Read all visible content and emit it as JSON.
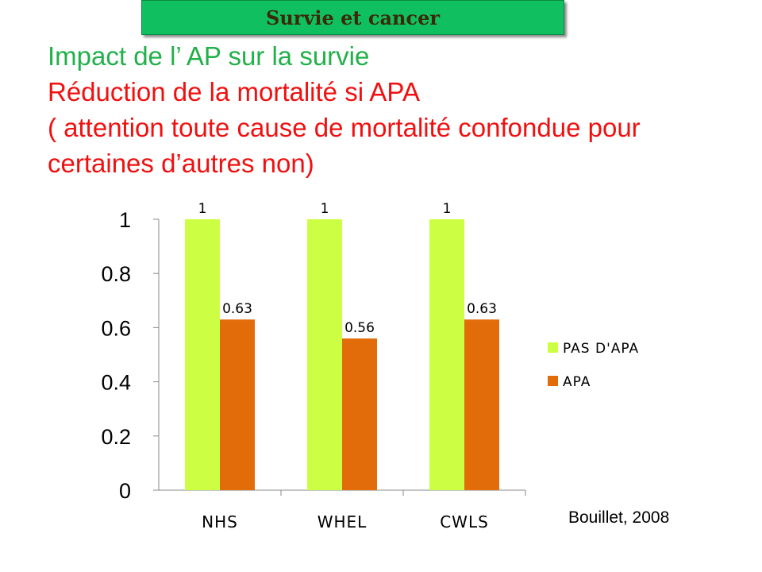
{
  "header": {
    "label": "Survie et cancer",
    "bg_color": "#10c060"
  },
  "title": {
    "line1": "Impact de l’ AP sur la survie",
    "line2": "Réduction de la mortalité si APA",
    "line3": "( attention toute cause de mortalité confondue pour",
    "line4": "certaines d’autres non)"
  },
  "chart_data": {
    "type": "bar",
    "categories": [
      "NHS",
      "WHEL",
      "CWLS"
    ],
    "series": [
      {
        "name": "PAS D'APA",
        "values": [
          1,
          1,
          1
        ],
        "labels": [
          "1",
          "1",
          "1"
        ],
        "color": "#ccff44"
      },
      {
        "name": "APA",
        "values": [
          0.63,
          0.56,
          0.63
        ],
        "labels": [
          "0.63",
          "0.56",
          "0.63"
        ],
        "color": "#e36c0a"
      }
    ],
    "yticks": [
      "0",
      "0.2",
      "0.4",
      "0.6",
      "0.8",
      "1"
    ],
    "ylim": [
      0,
      1
    ],
    "legend_position": "right",
    "grid": false
  },
  "source": "Bouillet, 2008"
}
